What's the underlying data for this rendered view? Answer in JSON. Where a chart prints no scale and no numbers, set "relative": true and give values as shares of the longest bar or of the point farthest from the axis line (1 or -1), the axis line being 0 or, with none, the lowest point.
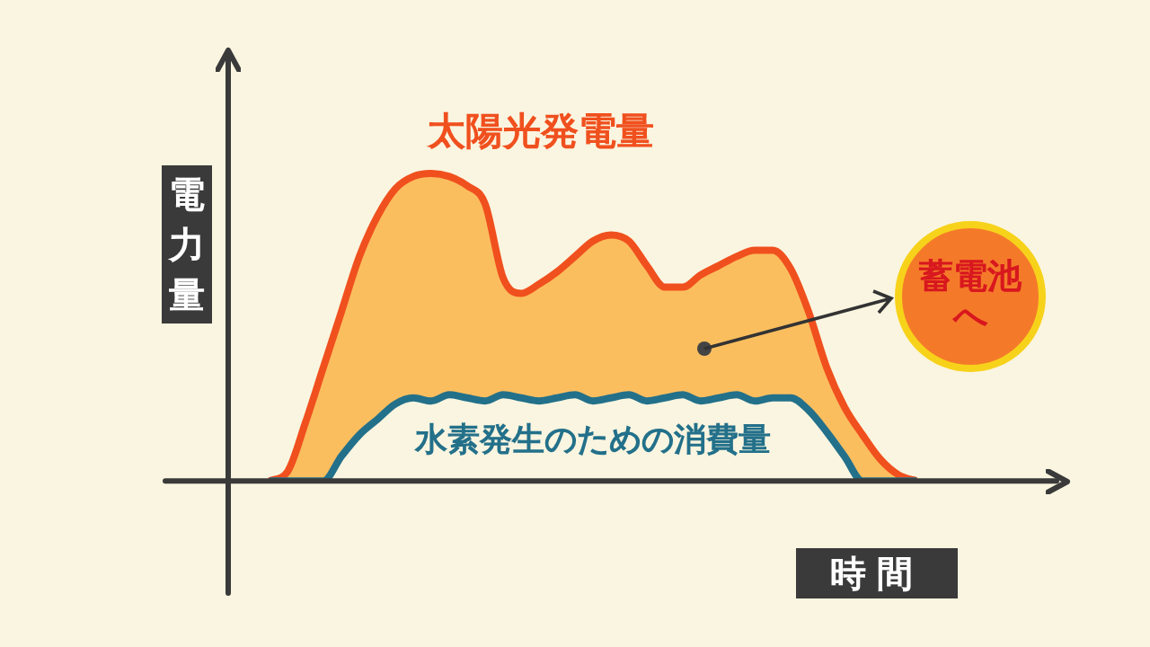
{
  "chart_data": {
    "type": "area",
    "relative": true,
    "xlabel": "時間",
    "ylabel": "電力量",
    "legend": false,
    "categories": [
      null,
      null,
      null,
      null,
      null,
      null,
      null,
      null,
      null,
      null,
      null,
      null,
      null,
      null,
      null,
      null,
      null,
      null,
      null,
      null,
      null,
      null,
      null,
      null,
      null,
      null,
      null,
      null,
      null,
      null,
      null,
      null,
      null,
      null,
      null,
      null,
      null
    ],
    "series": [
      {
        "name": "太陽光発電量",
        "color": "#f0501e",
        "values": [
          0,
          0.03,
          0.19,
          0.37,
          0.55,
          0.73,
          0.86,
          0.95,
          0.99,
          1,
          0.99,
          0.96,
          0.9,
          0.66,
          0.61,
          0.64,
          0.68,
          0.73,
          0.78,
          0.8,
          0.78,
          0.7,
          0.63,
          0.63,
          0.67,
          0.7,
          0.73,
          0.75,
          0.75,
          0.69,
          0.55,
          0.37,
          0.24,
          0.15,
          0.07,
          0.02,
          0
        ]
      },
      {
        "name": "水素発生のための消費量",
        "color": "#23708a",
        "values": [
          0,
          0,
          0,
          0,
          0.08,
          0.15,
          0.2,
          0.25,
          0.27,
          0.26,
          0.28,
          0.27,
          0.26,
          0.28,
          0.27,
          0.26,
          0.27,
          0.28,
          0.26,
          0.27,
          0.28,
          0.26,
          0.27,
          0.28,
          0.26,
          0.27,
          0.28,
          0.26,
          0.27,
          0.27,
          0.23,
          0.16,
          0.08,
          0,
          0,
          0,
          0
        ]
      }
    ],
    "annotations": [
      "蓄電池へ"
    ]
  }
}
